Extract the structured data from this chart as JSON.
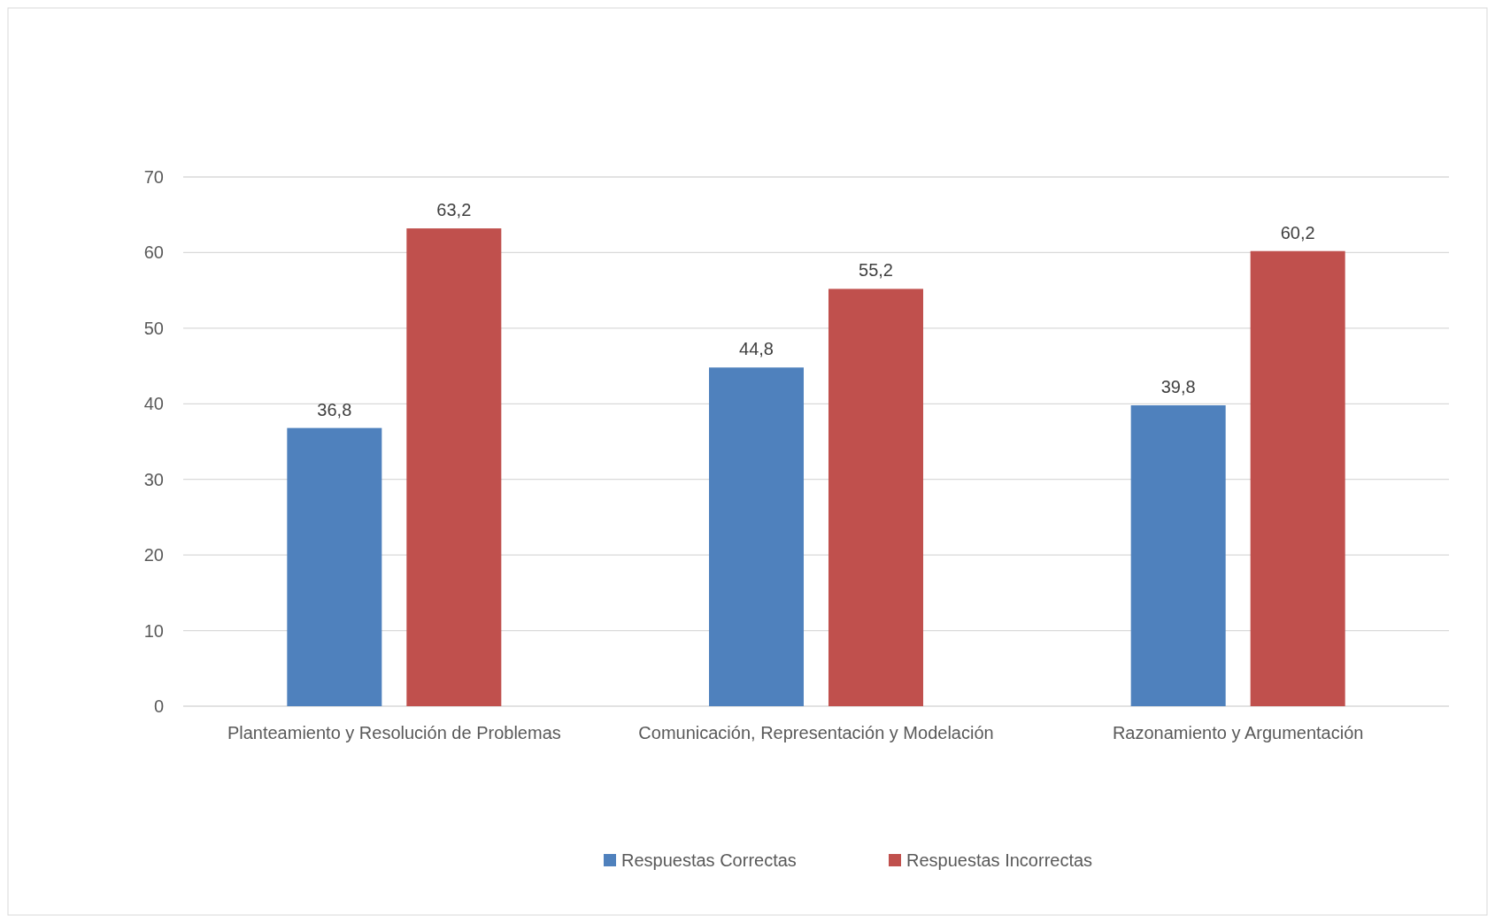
{
  "chart_data": {
    "type": "bar",
    "categories": [
      "Planteamiento y Resolución de Problemas",
      "Comunicación, Representación  y Modelación",
      "Razonamiento y Argumentación"
    ],
    "series": [
      {
        "name": "Respuestas Correctas",
        "color": "#4f81bd",
        "values": [
          36.8,
          44.8,
          39.8
        ],
        "value_labels": [
          "36,8",
          "44,8",
          "39,8"
        ]
      },
      {
        "name": "Respuestas Incorrectas",
        "color": "#c0504d",
        "values": [
          63.2,
          55.2,
          60.2
        ],
        "value_labels": [
          "63,2",
          "55,2",
          "60,2"
        ]
      }
    ],
    "ylim": [
      0,
      70
    ],
    "yticks": [
      0,
      10,
      20,
      30,
      40,
      50,
      60,
      70
    ],
    "grid": "y",
    "legend": "bottom"
  }
}
